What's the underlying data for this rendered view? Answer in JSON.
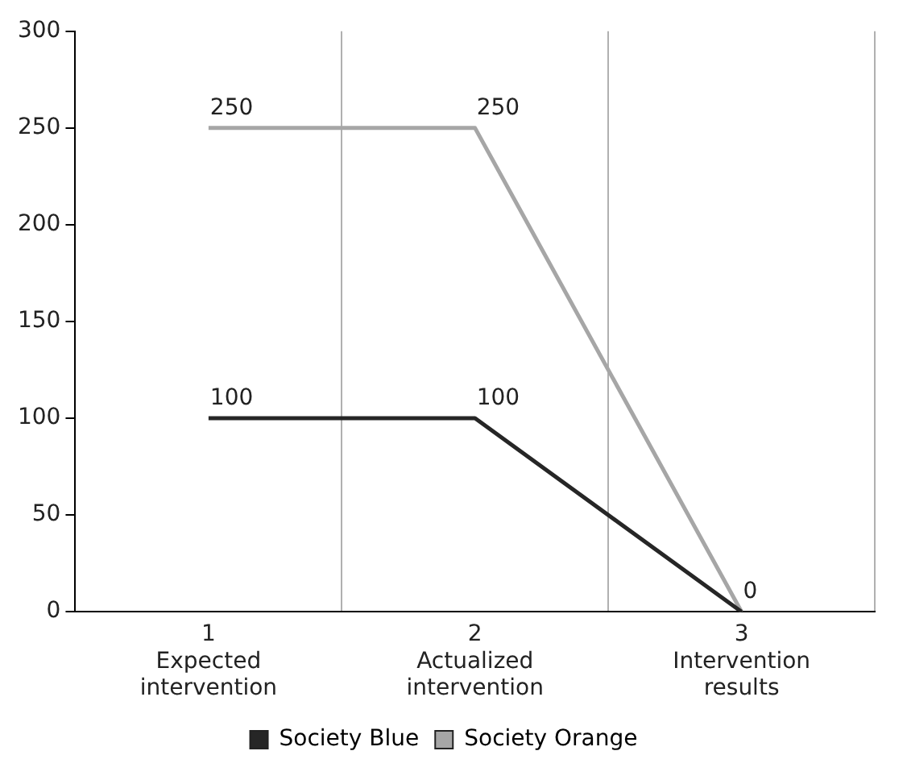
{
  "chart_data": {
    "type": "line",
    "categories": [
      "1\nExpected\nintervention",
      "2\nActualized\nintervention",
      "3\nIntervention\nresults"
    ],
    "series": [
      {
        "name": "Society Blue",
        "color": "#262626",
        "values": [
          100,
          100,
          0
        ],
        "value_labels": [
          "100",
          "100",
          null
        ]
      },
      {
        "name": "Society Orange",
        "color": "#a6a6a6",
        "values": [
          250,
          250,
          0
        ],
        "value_labels": [
          "250",
          "250",
          "0"
        ]
      }
    ],
    "ylim": [
      0,
      300
    ],
    "yticks": [
      0,
      50,
      100,
      150,
      200,
      250,
      300
    ],
    "grid": "x",
    "legend": "bottom",
    "marker": "none",
    "line_style": "solid"
  }
}
